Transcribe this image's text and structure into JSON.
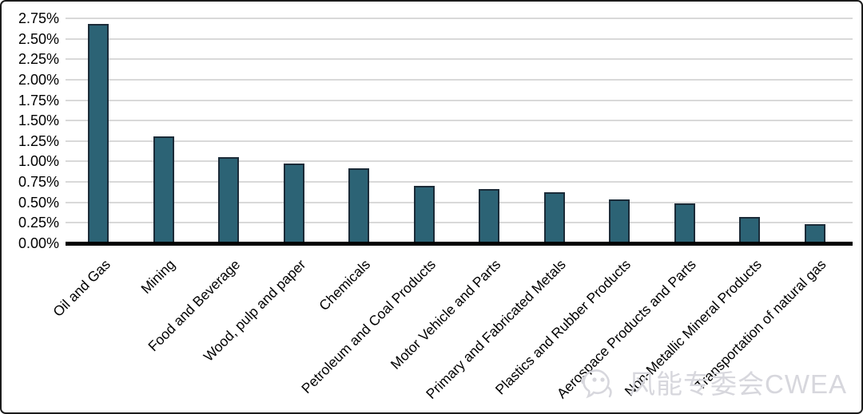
{
  "watermark": {
    "text": "风能专委会CWEA",
    "logo": "bird-logo-icon",
    "color": "#d7d7dd"
  },
  "chart_data": {
    "type": "bar",
    "title": "",
    "xlabel": "",
    "ylabel": "",
    "categories": [
      "Oil and Gas",
      "Mining",
      "Food and Beverage",
      "Wood, pulp and paper",
      "Chemicals",
      "Petroleum and Coal Products",
      "Motor Vehicle and Parts",
      "Primary and Fabricated Metals",
      "Plastics and Rubber Products",
      "Aerospace Products and Parts",
      "Non-Metallic Mineral Products",
      "Transportation of natural gas"
    ],
    "values": [
      2.68,
      1.31,
      1.05,
      0.98,
      0.92,
      0.7,
      0.66,
      0.62,
      0.54,
      0.49,
      0.32,
      0.23
    ],
    "value_unit": "%",
    "ylim": [
      0,
      2.75
    ],
    "yticks": [
      {
        "value": 2.75,
        "label": "2.75%"
      },
      {
        "value": 2.5,
        "label": "2.50%"
      },
      {
        "value": 2.25,
        "label": "2.25%"
      },
      {
        "value": 2.0,
        "label": "2.00%"
      },
      {
        "value": 1.75,
        "label": "1.75%"
      },
      {
        "value": 1.5,
        "label": "1.50%"
      },
      {
        "value": 1.25,
        "label": "1.25%"
      },
      {
        "value": 1.0,
        "label": "1.00%"
      },
      {
        "value": 0.75,
        "label": "0.75%"
      },
      {
        "value": 0.5,
        "label": "0.50%"
      },
      {
        "value": 0.25,
        "label": "0.25%"
      },
      {
        "value": 0.0,
        "label": "0.00%"
      }
    ],
    "grid": true,
    "legend": "none",
    "bar_fill_color": "#2c6375",
    "bar_border_color": "#1b2b38",
    "gridline_color": "#d9d9d9",
    "axis_color": "#000000",
    "x_label_rotation_deg": -45
  }
}
